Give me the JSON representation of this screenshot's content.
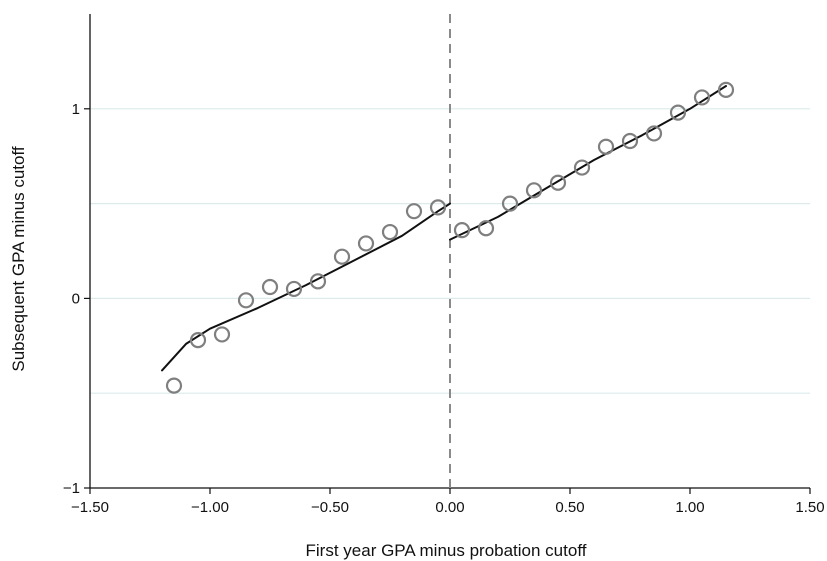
{
  "chart_data": {
    "type": "scatter",
    "title": "",
    "xlabel": "First year GPA minus probation cutoff",
    "ylabel": "Subsequent GPA minus cutoff",
    "xlim": [
      -1.5,
      1.5
    ],
    "ylim": [
      -1,
      1.5
    ],
    "x_ticks": [
      {
        "value": -1.5,
        "label": "−1.50"
      },
      {
        "value": -1.0,
        "label": "−1.00"
      },
      {
        "value": -0.5,
        "label": "−0.50"
      },
      {
        "value": 0.0,
        "label": "0.00"
      },
      {
        "value": 0.5,
        "label": "0.50"
      },
      {
        "value": 1.0,
        "label": "1.00"
      },
      {
        "value": 1.5,
        "label": "1.50"
      }
    ],
    "y_ticks": [
      {
        "value": -1,
        "label": "−1"
      },
      {
        "value": 0,
        "label": "0"
      },
      {
        "value": 1,
        "label": "1"
      }
    ],
    "grid_y": [
      -0.5,
      0,
      0.5,
      1
    ],
    "cutoff_line_x": 0,
    "points": [
      {
        "x": -1.15,
        "y": -0.46
      },
      {
        "x": -1.05,
        "y": -0.22
      },
      {
        "x": -0.95,
        "y": -0.19
      },
      {
        "x": -0.85,
        "y": -0.01
      },
      {
        "x": -0.75,
        "y": 0.06
      },
      {
        "x": -0.65,
        "y": 0.05
      },
      {
        "x": -0.55,
        "y": 0.09
      },
      {
        "x": -0.45,
        "y": 0.22
      },
      {
        "x": -0.35,
        "y": 0.29
      },
      {
        "x": -0.25,
        "y": 0.35
      },
      {
        "x": -0.15,
        "y": 0.46
      },
      {
        "x": -0.05,
        "y": 0.48
      },
      {
        "x": 0.05,
        "y": 0.36
      },
      {
        "x": 0.15,
        "y": 0.37
      },
      {
        "x": 0.25,
        "y": 0.5
      },
      {
        "x": 0.35,
        "y": 0.57
      },
      {
        "x": 0.45,
        "y": 0.61
      },
      {
        "x": 0.55,
        "y": 0.69
      },
      {
        "x": 0.65,
        "y": 0.8
      },
      {
        "x": 0.75,
        "y": 0.83
      },
      {
        "x": 0.85,
        "y": 0.87
      },
      {
        "x": 0.95,
        "y": 0.98
      },
      {
        "x": 1.05,
        "y": 1.06
      },
      {
        "x": 1.15,
        "y": 1.1
      }
    ],
    "fit_lines": [
      {
        "segment": "left",
        "points": [
          [
            -1.2,
            -0.38
          ],
          [
            -1.1,
            -0.24
          ],
          [
            -1.0,
            -0.16
          ],
          [
            -0.8,
            -0.05
          ],
          [
            -0.6,
            0.07
          ],
          [
            -0.4,
            0.2
          ],
          [
            -0.2,
            0.33
          ],
          [
            -0.05,
            0.46
          ],
          [
            0.0,
            0.5
          ]
        ]
      },
      {
        "segment": "right",
        "points": [
          [
            0.0,
            0.31
          ],
          [
            0.2,
            0.43
          ],
          [
            0.4,
            0.58
          ],
          [
            0.6,
            0.73
          ],
          [
            0.8,
            0.86
          ],
          [
            1.0,
            1.0
          ],
          [
            1.15,
            1.12
          ]
        ]
      }
    ],
    "colors": {
      "marker_stroke": "#7f7f7f",
      "fit_line": "#111111",
      "cutoff_line": "#8a8a8a",
      "grid": "#dcebea",
      "axis": "#111111"
    },
    "legend": "none"
  }
}
